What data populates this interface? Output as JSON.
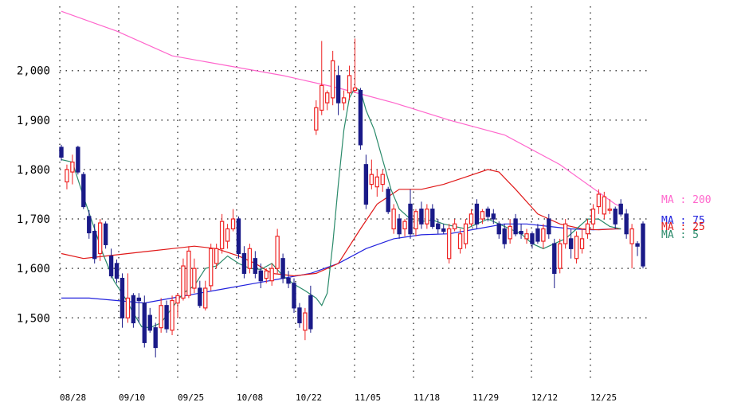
{
  "chart_data": {
    "type": "candlestick",
    "y_ticks": [
      "1,500",
      "1,600",
      "1,700",
      "1,800",
      "1,900",
      "2,000"
    ],
    "y_tick_values": [
      1500,
      1600,
      1700,
      1800,
      1900,
      2000
    ],
    "ylim": [
      1370,
      2130
    ],
    "x_ticks": [
      "08/28",
      "09/10",
      "09/25",
      "10/08",
      "10/22",
      "11/05",
      "11/18",
      "11/29",
      "12/12",
      "12/25"
    ],
    "x_tick_index": [
      0,
      10,
      20,
      30,
      40,
      50,
      60,
      70,
      80,
      90
    ],
    "grid": true,
    "colors": {
      "up": "#ee2222",
      "down": "#1a1a88",
      "ma5": "#2a8a6a",
      "ma25": "#e01818",
      "ma75": "#2222dd",
      "ma200": "#ff66cc",
      "grid": "#444444"
    },
    "legend": [
      {
        "name": "MA : 200",
        "color": "#ff66cc"
      },
      {
        "name": "MA : 75",
        "color": "#2222dd"
      },
      {
        "name": "MA : 25",
        "color": "#e01818"
      },
      {
        "name": "MA : 5",
        "color": "#2a8a6a"
      }
    ],
    "candles": [
      {
        "o": 1845,
        "h": 1850,
        "l": 1818,
        "c": 1825
      },
      {
        "o": 1775,
        "h": 1810,
        "l": 1760,
        "c": 1800
      },
      {
        "o": 1795,
        "h": 1830,
        "l": 1770,
        "c": 1815
      },
      {
        "o": 1845,
        "h": 1848,
        "l": 1790,
        "c": 1795
      },
      {
        "o": 1790,
        "h": 1795,
        "l": 1720,
        "c": 1725
      },
      {
        "o": 1705,
        "h": 1718,
        "l": 1660,
        "c": 1672
      },
      {
        "o": 1675,
        "h": 1690,
        "l": 1610,
        "c": 1620
      },
      {
        "o": 1630,
        "h": 1700,
        "l": 1615,
        "c": 1692
      },
      {
        "o": 1690,
        "h": 1695,
        "l": 1640,
        "c": 1648
      },
      {
        "o": 1625,
        "h": 1640,
        "l": 1580,
        "c": 1585
      },
      {
        "o": 1610,
        "h": 1618,
        "l": 1570,
        "c": 1580
      },
      {
        "o": 1580,
        "h": 1590,
        "l": 1480,
        "c": 1500
      },
      {
        "o": 1500,
        "h": 1590,
        "l": 1490,
        "c": 1540
      },
      {
        "o": 1545,
        "h": 1550,
        "l": 1480,
        "c": 1490
      },
      {
        "o": 1540,
        "h": 1550,
        "l": 1490,
        "c": 1535
      },
      {
        "o": 1530,
        "h": 1545,
        "l": 1440,
        "c": 1450
      },
      {
        "o": 1505,
        "h": 1520,
        "l": 1470,
        "c": 1475
      },
      {
        "o": 1480,
        "h": 1490,
        "l": 1420,
        "c": 1440
      },
      {
        "o": 1480,
        "h": 1540,
        "l": 1470,
        "c": 1525
      },
      {
        "o": 1525,
        "h": 1535,
        "l": 1470,
        "c": 1478
      },
      {
        "o": 1475,
        "h": 1545,
        "l": 1465,
        "c": 1535
      },
      {
        "o": 1530,
        "h": 1550,
        "l": 1500,
        "c": 1545
      },
      {
        "o": 1540,
        "h": 1620,
        "l": 1535,
        "c": 1605
      },
      {
        "o": 1545,
        "h": 1645,
        "l": 1540,
        "c": 1635
      },
      {
        "o": 1560,
        "h": 1620,
        "l": 1550,
        "c": 1600
      },
      {
        "o": 1560,
        "h": 1575,
        "l": 1520,
        "c": 1525
      },
      {
        "o": 1520,
        "h": 1575,
        "l": 1515,
        "c": 1560
      },
      {
        "o": 1565,
        "h": 1650,
        "l": 1555,
        "c": 1640
      },
      {
        "o": 1610,
        "h": 1650,
        "l": 1600,
        "c": 1640
      },
      {
        "o": 1640,
        "h": 1710,
        "l": 1630,
        "c": 1695
      },
      {
        "o": 1655,
        "h": 1690,
        "l": 1640,
        "c": 1680
      },
      {
        "o": 1680,
        "h": 1720,
        "l": 1675,
        "c": 1700
      },
      {
        "o": 1700,
        "h": 1705,
        "l": 1620,
        "c": 1630
      },
      {
        "o": 1630,
        "h": 1645,
        "l": 1580,
        "c": 1590
      },
      {
        "o": 1600,
        "h": 1650,
        "l": 1590,
        "c": 1640
      },
      {
        "o": 1620,
        "h": 1635,
        "l": 1580,
        "c": 1590
      },
      {
        "o": 1595,
        "h": 1610,
        "l": 1560,
        "c": 1575
      },
      {
        "o": 1580,
        "h": 1600,
        "l": 1570,
        "c": 1595
      },
      {
        "o": 1575,
        "h": 1610,
        "l": 1565,
        "c": 1600
      },
      {
        "o": 1600,
        "h": 1680,
        "l": 1590,
        "c": 1665
      },
      {
        "o": 1620,
        "h": 1630,
        "l": 1570,
        "c": 1580
      },
      {
        "o": 1580,
        "h": 1595,
        "l": 1560,
        "c": 1570
      },
      {
        "o": 1570,
        "h": 1580,
        "l": 1510,
        "c": 1520
      },
      {
        "o": 1520,
        "h": 1530,
        "l": 1480,
        "c": 1490
      },
      {
        "o": 1475,
        "h": 1520,
        "l": 1455,
        "c": 1510
      },
      {
        "o": 1545,
        "h": 1565,
        "l": 1470,
        "c": 1478
      },
      {
        "o": 1880,
        "h": 1940,
        "l": 1870,
        "c": 1925
      },
      {
        "o": 1920,
        "h": 2060,
        "l": 1910,
        "c": 1970
      },
      {
        "o": 1935,
        "h": 1960,
        "l": 1920,
        "c": 1955
      },
      {
        "o": 1945,
        "h": 2040,
        "l": 1930,
        "c": 2020
      },
      {
        "o": 1990,
        "h": 2010,
        "l": 1910,
        "c": 1935
      },
      {
        "o": 1935,
        "h": 1960,
        "l": 1920,
        "c": 1945
      },
      {
        "o": 1955,
        "h": 2010,
        "l": 1940,
        "c": 1990
      },
      {
        "o": 1960,
        "h": 2065,
        "l": 1955,
        "c": 1965
      },
      {
        "o": 1960,
        "h": 1965,
        "l": 1840,
        "c": 1850
      },
      {
        "o": 1810,
        "h": 1830,
        "l": 1720,
        "c": 1730
      },
      {
        "o": 1770,
        "h": 1820,
        "l": 1760,
        "c": 1790
      },
      {
        "o": 1765,
        "h": 1800,
        "l": 1745,
        "c": 1785
      },
      {
        "o": 1770,
        "h": 1800,
        "l": 1755,
        "c": 1790
      },
      {
        "o": 1760,
        "h": 1765,
        "l": 1710,
        "c": 1715
      },
      {
        "o": 1680,
        "h": 1730,
        "l": 1670,
        "c": 1720
      },
      {
        "o": 1700,
        "h": 1710,
        "l": 1660,
        "c": 1670
      },
      {
        "o": 1680,
        "h": 1700,
        "l": 1665,
        "c": 1695
      },
      {
        "o": 1730,
        "h": 1760,
        "l": 1660,
        "c": 1670
      },
      {
        "o": 1680,
        "h": 1720,
        "l": 1665,
        "c": 1715
      },
      {
        "o": 1720,
        "h": 1735,
        "l": 1680,
        "c": 1690
      },
      {
        "o": 1690,
        "h": 1730,
        "l": 1680,
        "c": 1720
      },
      {
        "o": 1720,
        "h": 1730,
        "l": 1680,
        "c": 1685
      },
      {
        "o": 1690,
        "h": 1700,
        "l": 1670,
        "c": 1680
      },
      {
        "o": 1680,
        "h": 1690,
        "l": 1670,
        "c": 1675
      },
      {
        "o": 1620,
        "h": 1690,
        "l": 1610,
        "c": 1680
      },
      {
        "o": 1680,
        "h": 1700,
        "l": 1675,
        "c": 1690
      },
      {
        "o": 1640,
        "h": 1680,
        "l": 1630,
        "c": 1670
      },
      {
        "o": 1650,
        "h": 1700,
        "l": 1640,
        "c": 1690
      },
      {
        "o": 1690,
        "h": 1720,
        "l": 1685,
        "c": 1710
      },
      {
        "o": 1730,
        "h": 1740,
        "l": 1680,
        "c": 1690
      },
      {
        "o": 1700,
        "h": 1720,
        "l": 1690,
        "c": 1715
      },
      {
        "o": 1720,
        "h": 1725,
        "l": 1695,
        "c": 1705
      },
      {
        "o": 1710,
        "h": 1720,
        "l": 1690,
        "c": 1700
      },
      {
        "o": 1690,
        "h": 1695,
        "l": 1660,
        "c": 1670
      },
      {
        "o": 1680,
        "h": 1690,
        "l": 1640,
        "c": 1650
      },
      {
        "o": 1660,
        "h": 1700,
        "l": 1650,
        "c": 1685
      },
      {
        "o": 1700,
        "h": 1710,
        "l": 1665,
        "c": 1670
      },
      {
        "o": 1675,
        "h": 1690,
        "l": 1660,
        "c": 1670
      },
      {
        "o": 1660,
        "h": 1680,
        "l": 1650,
        "c": 1670
      },
      {
        "o": 1670,
        "h": 1675,
        "l": 1640,
        "c": 1650
      },
      {
        "o": 1680,
        "h": 1690,
        "l": 1650,
        "c": 1655
      },
      {
        "o": 1655,
        "h": 1690,
        "l": 1640,
        "c": 1680
      },
      {
        "o": 1700,
        "h": 1710,
        "l": 1660,
        "c": 1670
      },
      {
        "o": 1650,
        "h": 1660,
        "l": 1560,
        "c": 1590
      },
      {
        "o": 1600,
        "h": 1660,
        "l": 1590,
        "c": 1650
      },
      {
        "o": 1650,
        "h": 1700,
        "l": 1640,
        "c": 1690
      },
      {
        "o": 1660,
        "h": 1680,
        "l": 1620,
        "c": 1640
      },
      {
        "o": 1620,
        "h": 1675,
        "l": 1610,
        "c": 1665
      },
      {
        "o": 1640,
        "h": 1680,
        "l": 1630,
        "c": 1660
      },
      {
        "o": 1670,
        "h": 1700,
        "l": 1660,
        "c": 1690
      },
      {
        "o": 1690,
        "h": 1730,
        "l": 1680,
        "c": 1720
      },
      {
        "o": 1725,
        "h": 1760,
        "l": 1710,
        "c": 1750
      },
      {
        "o": 1710,
        "h": 1755,
        "l": 1700,
        "c": 1745
      },
      {
        "o": 1720,
        "h": 1740,
        "l": 1710,
        "c": 1720
      },
      {
        "o": 1720,
        "h": 1725,
        "l": 1680,
        "c": 1690
      },
      {
        "o": 1730,
        "h": 1740,
        "l": 1705,
        "c": 1710
      },
      {
        "o": 1710,
        "h": 1720,
        "l": 1660,
        "c": 1670
      },
      {
        "o": 1650,
        "h": 1690,
        "l": 1600,
        "c": 1680
      },
      {
        "o": 1650,
        "h": 1655,
        "l": 1625,
        "c": 1645
      },
      {
        "o": 1690,
        "h": 1695,
        "l": 1600,
        "c": 1605
      }
    ],
    "ma5": [
      [
        0,
        1820
      ],
      [
        4,
        1815
      ],
      [
        8,
        1745
      ],
      [
        12,
        1680
      ],
      [
        15,
        1630
      ],
      [
        19,
        1575
      ],
      [
        23,
        1540
      ],
      [
        26,
        1510
      ],
      [
        29,
        1482
      ],
      [
        32,
        1480
      ],
      [
        36,
        1490
      ],
      [
        40,
        1520
      ],
      [
        44,
        1550
      ],
      [
        48,
        1565
      ],
      [
        52,
        1600
      ],
      [
        56,
        1605
      ],
      [
        60,
        1625
      ],
      [
        64,
        1610
      ],
      [
        68,
        1600
      ],
      [
        72,
        1598
      ],
      [
        76,
        1610
      ],
      [
        80,
        1585
      ],
      [
        84,
        1568
      ],
      [
        88,
        1555
      ],
      [
        92,
        1540
      ],
      [
        94,
        1525
      ],
      [
        96,
        1550
      ],
      [
        98,
        1650
      ],
      [
        100,
        1770
      ],
      [
        102,
        1880
      ],
      [
        104,
        1945
      ],
      [
        106,
        1965
      ],
      [
        108,
        1960
      ],
      [
        110,
        1920
      ],
      [
        113,
        1880
      ],
      [
        116,
        1820
      ],
      [
        119,
        1760
      ],
      [
        122,
        1720
      ],
      [
        126,
        1700
      ],
      [
        130,
        1695
      ],
      [
        134,
        1698
      ],
      [
        138,
        1690
      ],
      [
        142,
        1685
      ],
      [
        146,
        1680
      ],
      [
        150,
        1690
      ],
      [
        154,
        1700
      ],
      [
        158,
        1690
      ],
      [
        162,
        1680
      ],
      [
        166,
        1670
      ],
      [
        170,
        1650
      ],
      [
        174,
        1640
      ],
      [
        178,
        1650
      ],
      [
        182,
        1660
      ],
      [
        186,
        1680
      ],
      [
        190,
        1700
      ],
      [
        194,
        1700
      ],
      [
        198,
        1685
      ],
      [
        202,
        1680
      ]
    ],
    "ma25": [
      [
        0,
        1630
      ],
      [
        8,
        1620
      ],
      [
        16,
        1625
      ],
      [
        24,
        1630
      ],
      [
        32,
        1635
      ],
      [
        40,
        1640
      ],
      [
        48,
        1645
      ],
      [
        56,
        1640
      ],
      [
        64,
        1625
      ],
      [
        70,
        1610
      ],
      [
        76,
        1590
      ],
      [
        84,
        1585
      ],
      [
        92,
        1590
      ],
      [
        100,
        1610
      ],
      [
        108,
        1680
      ],
      [
        114,
        1730
      ],
      [
        122,
        1760
      ],
      [
        130,
        1760
      ],
      [
        138,
        1770
      ],
      [
        146,
        1785
      ],
      [
        154,
        1800
      ],
      [
        158,
        1795
      ],
      [
        164,
        1760
      ],
      [
        172,
        1710
      ],
      [
        180,
        1690
      ],
      [
        188,
        1680
      ],
      [
        194,
        1678
      ],
      [
        200,
        1680
      ],
      [
        202,
        1680
      ]
    ],
    "ma75": [
      [
        0,
        1540
      ],
      [
        10,
        1540
      ],
      [
        20,
        1535
      ],
      [
        30,
        1530
      ],
      [
        40,
        1540
      ],
      [
        50,
        1550
      ],
      [
        60,
        1560
      ],
      [
        70,
        1570
      ],
      [
        80,
        1580
      ],
      [
        90,
        1590
      ],
      [
        100,
        1610
      ],
      [
        110,
        1640
      ],
      [
        120,
        1660
      ],
      [
        130,
        1668
      ],
      [
        140,
        1670
      ],
      [
        150,
        1680
      ],
      [
        160,
        1690
      ],
      [
        168,
        1690
      ],
      [
        176,
        1685
      ],
      [
        184,
        1680
      ],
      [
        192,
        1678
      ],
      [
        200,
        1680
      ],
      [
        202,
        1680
      ]
    ],
    "ma200": [
      [
        0,
        2120
      ],
      [
        20,
        2080
      ],
      [
        40,
        2030
      ],
      [
        60,
        2010
      ],
      [
        80,
        1990
      ],
      [
        100,
        1965
      ],
      [
        120,
        1935
      ],
      [
        140,
        1900
      ],
      [
        160,
        1870
      ],
      [
        180,
        1810
      ],
      [
        200,
        1730
      ],
      [
        202,
        1725
      ]
    ]
  }
}
